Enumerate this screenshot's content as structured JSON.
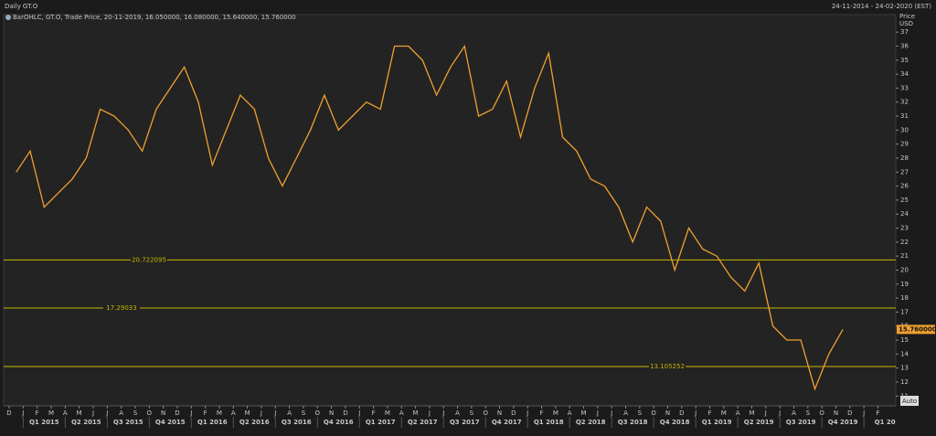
{
  "chart_data": {
    "type": "line",
    "title": "Daily GT.O",
    "date_range": "24-11-2014 - 24-02-2020 (EST)",
    "legend_text": "BarOHLC, GT.O, Trade Price, 20-11-2019, 16.050000, 16.080000, 15.640000, 15.760000",
    "y_label": "Price",
    "y_unit": "USD",
    "auto_button": "Auto",
    "color": "#f0a030",
    "x": [
      "2014-12",
      "2015-01",
      "2015-02",
      "2015-03",
      "2015-04",
      "2015-05",
      "2015-06",
      "2015-07",
      "2015-08",
      "2015-09",
      "2015-10",
      "2015-11",
      "2015-12",
      "2016-01",
      "2016-02",
      "2016-03",
      "2016-04",
      "2016-05",
      "2016-06",
      "2016-07",
      "2016-08",
      "2016-09",
      "2016-10",
      "2016-11",
      "2016-12",
      "2017-01",
      "2017-02",
      "2017-03",
      "2017-04",
      "2017-05",
      "2017-06",
      "2017-07",
      "2017-08",
      "2017-09",
      "2017-10",
      "2017-11",
      "2017-12",
      "2018-01",
      "2018-02",
      "2018-03",
      "2018-04",
      "2018-05",
      "2018-06",
      "2018-07",
      "2018-08",
      "2018-09",
      "2018-10",
      "2018-11",
      "2018-12",
      "2019-01",
      "2019-02",
      "2019-03",
      "2019-04",
      "2019-05",
      "2019-06",
      "2019-07",
      "2019-08",
      "2019-09",
      "2019-10",
      "2019-11"
    ],
    "values": [
      27,
      28.5,
      24.5,
      25.5,
      26.5,
      28,
      31.5,
      31,
      30,
      28.5,
      31.5,
      33,
      34.5,
      32,
      27.5,
      30,
      32.5,
      31.5,
      28,
      26,
      28,
      30,
      32.5,
      30,
      31,
      32,
      31.5,
      36,
      36,
      35,
      32.5,
      34.5,
      36,
      31,
      31.5,
      33.5,
      29.5,
      33,
      35.5,
      29.5,
      28.5,
      26.5,
      26,
      24.5,
      22,
      24.5,
      23.5,
      20,
      23,
      21.5,
      21,
      19.5,
      18.5,
      20.5,
      16,
      15,
      15,
      11.5,
      14,
      15.76
    ],
    "last_value_label": "15.760000",
    "hlines": [
      20.722095,
      17.29033,
      13.105252
    ],
    "hline_color": "#c8b400",
    "ylim": [
      10.3,
      38.25
    ],
    "yticks": [
      11,
      12,
      13,
      14,
      15,
      16,
      17,
      18,
      19,
      20,
      21,
      22,
      23,
      24,
      25,
      26,
      27,
      28,
      29,
      30,
      31,
      32,
      33,
      34,
      35,
      36,
      37
    ],
    "xticks": [
      {
        "value": "2014-12",
        "label": "D"
      },
      {
        "value": "2015-01",
        "label": "J"
      },
      {
        "value": "2015-02",
        "label": "F"
      },
      {
        "value": "2015-03",
        "label": "M"
      },
      {
        "value": "2015-04",
        "label": "A"
      },
      {
        "value": "2015-05",
        "label": "M"
      },
      {
        "value": "2015-06",
        "label": "J"
      },
      {
        "value": "2015-07",
        "label": "J"
      },
      {
        "value": "2015-08",
        "label": "A"
      },
      {
        "value": "2015-09",
        "label": "S"
      },
      {
        "value": "2015-10",
        "label": "O"
      },
      {
        "value": "2015-11",
        "label": "N"
      },
      {
        "value": "2015-12",
        "label": "D"
      },
      {
        "value": "2016-01",
        "label": "J"
      },
      {
        "value": "2016-02",
        "label": "F"
      },
      {
        "value": "2016-03",
        "label": "M"
      },
      {
        "value": "2016-04",
        "label": "A"
      },
      {
        "value": "2016-05",
        "label": "M"
      },
      {
        "value": "2016-06",
        "label": "J"
      },
      {
        "value": "2016-07",
        "label": "J"
      },
      {
        "value": "2016-08",
        "label": "A"
      },
      {
        "value": "2016-09",
        "label": "S"
      },
      {
        "value": "2016-10",
        "label": "O"
      },
      {
        "value": "2016-11",
        "label": "N"
      },
      {
        "value": "2016-12",
        "label": "D"
      },
      {
        "value": "2017-01",
        "label": "J"
      },
      {
        "value": "2017-02",
        "label": "F"
      },
      {
        "value": "2017-03",
        "label": "M"
      },
      {
        "value": "2017-04",
        "label": "A"
      },
      {
        "value": "2017-05",
        "label": "M"
      },
      {
        "value": "2017-06",
        "label": "J"
      },
      {
        "value": "2017-07",
        "label": "J"
      },
      {
        "value": "2017-08",
        "label": "A"
      },
      {
        "value": "2017-09",
        "label": "S"
      },
      {
        "value": "2017-10",
        "label": "O"
      },
      {
        "value": "2017-11",
        "label": "N"
      },
      {
        "value": "2017-12",
        "label": "D"
      },
      {
        "value": "2018-01",
        "label": "J"
      },
      {
        "value": "2018-02",
        "label": "F"
      },
      {
        "value": "2018-03",
        "label": "M"
      },
      {
        "value": "2018-04",
        "label": "A"
      },
      {
        "value": "2018-05",
        "label": "M"
      },
      {
        "value": "2018-06",
        "label": "J"
      },
      {
        "value": "2018-07",
        "label": "J"
      },
      {
        "value": "2018-08",
        "label": "A"
      },
      {
        "value": "2018-09",
        "label": "S"
      },
      {
        "value": "2018-10",
        "label": "O"
      },
      {
        "value": "2018-11",
        "label": "N"
      },
      {
        "value": "2018-12",
        "label": "D"
      },
      {
        "value": "2019-01",
        "label": "J"
      },
      {
        "value": "2019-02",
        "label": "F"
      },
      {
        "value": "2019-03",
        "label": "M"
      },
      {
        "value": "2019-04",
        "label": "A"
      },
      {
        "value": "2019-05",
        "label": "M"
      },
      {
        "value": "2019-06",
        "label": "J"
      },
      {
        "value": "2019-07",
        "label": "J"
      },
      {
        "value": "2019-08",
        "label": "A"
      },
      {
        "value": "2019-09",
        "label": "S"
      },
      {
        "value": "2019-10",
        "label": "O"
      },
      {
        "value": "2019-11",
        "label": "N"
      },
      {
        "value": "2019-12",
        "label": "D"
      },
      {
        "value": "2020-01",
        "label": "J"
      },
      {
        "value": "2020-02",
        "label": "F"
      }
    ],
    "quarters": [
      {
        "value": "2015-02",
        "label": "Q1 2015"
      },
      {
        "value": "2015-05",
        "label": "Q2 2015"
      },
      {
        "value": "2015-08",
        "label": "Q3 2015"
      },
      {
        "value": "2015-11",
        "label": "Q4 2015"
      },
      {
        "value": "2016-02",
        "label": "Q1 2016"
      },
      {
        "value": "2016-05",
        "label": "Q2 2016"
      },
      {
        "value": "2016-08",
        "label": "Q3 2016"
      },
      {
        "value": "2016-11",
        "label": "Q4 2016"
      },
      {
        "value": "2017-02",
        "label": "Q1 2017"
      },
      {
        "value": "2017-05",
        "label": "Q2 2017"
      },
      {
        "value": "2017-08",
        "label": "Q3 2017"
      },
      {
        "value": "2017-11",
        "label": "Q4 2017"
      },
      {
        "value": "2018-02",
        "label": "Q1 2018"
      },
      {
        "value": "2018-05",
        "label": "Q2 2018"
      },
      {
        "value": "2018-08",
        "label": "Q3 2018"
      },
      {
        "value": "2018-11",
        "label": "Q4 2018"
      },
      {
        "value": "2019-02",
        "label": "Q1 2019"
      },
      {
        "value": "2019-05",
        "label": "Q2 2019"
      },
      {
        "value": "2019-08",
        "label": "Q3 2019"
      },
      {
        "value": "2019-11",
        "label": "Q4 2019"
      },
      {
        "value": "2020-02",
        "label": "Q1 20"
      }
    ]
  }
}
